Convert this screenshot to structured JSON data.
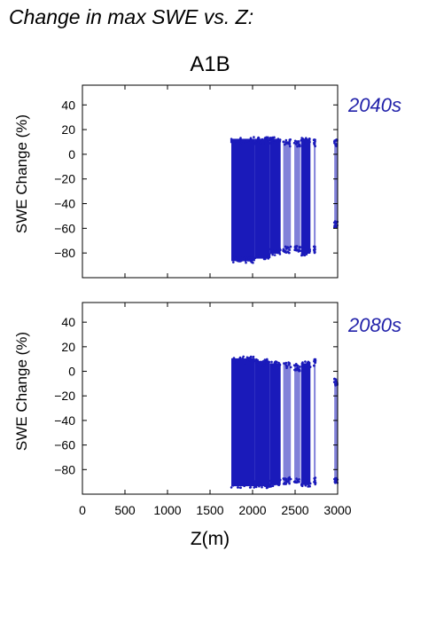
{
  "page_title": "Change in max SWE vs. Z:",
  "colors": {
    "points": "#1a1aba",
    "panel_label": "#2222aa",
    "axes": "#000000"
  },
  "chart_data": [
    {
      "type": "scatter",
      "scenario": "A1B",
      "panel_label": "2040s",
      "ylabel": "SWE Change (%)",
      "xlabel": "",
      "xlim": [
        0,
        3000
      ],
      "ylim": [
        -100,
        56
      ],
      "yticks": [
        -80,
        -60,
        -40,
        -20,
        0,
        20,
        40
      ],
      "ytick_labels": [
        "−80",
        "−60",
        "−40",
        "−20",
        "0",
        "20",
        "40"
      ],
      "xticks": [
        0,
        500,
        1000,
        1500,
        2000,
        2500,
        3000
      ],
      "grid": false,
      "point_groups": [
        {
          "x": [
            1750,
            2030
          ],
          "y": [
            -88,
            14
          ],
          "note": "dense main cluster"
        },
        {
          "x": [
            2030,
            2200
          ],
          "y": [
            -86,
            14
          ]
        },
        {
          "x": [
            2200,
            2330
          ],
          "y": [
            -82,
            14
          ]
        },
        {
          "x": [
            2360,
            2450
          ],
          "y": [
            -80,
            12
          ]
        },
        {
          "x": [
            2490,
            2560
          ],
          "y": [
            -80,
            12
          ]
        },
        {
          "x": [
            2570,
            2680
          ],
          "y": [
            -82,
            14
          ]
        },
        {
          "x": [
            2720,
            2740
          ],
          "y": [
            -80,
            12
          ]
        },
        {
          "x": [
            2960,
            3000
          ],
          "y": [
            -60,
            12
          ]
        }
      ]
    },
    {
      "type": "scatter",
      "scenario": "A1B",
      "panel_label": "2080s",
      "ylabel": "SWE Change (%)",
      "xlabel": "Z(m)",
      "xlim": [
        0,
        3000
      ],
      "ylim": [
        -100,
        56
      ],
      "yticks": [
        -80,
        -60,
        -40,
        -20,
        0,
        20,
        40
      ],
      "ytick_labels": [
        "−80",
        "−60",
        "−40",
        "−20",
        "0",
        "20",
        "40"
      ],
      "xticks": [
        0,
        500,
        1000,
        1500,
        2000,
        2500,
        3000
      ],
      "xtick_labels": [
        "0",
        "500",
        "1000",
        "1500",
        "2000",
        "2500",
        "3000"
      ],
      "grid": false,
      "point_groups": [
        {
          "x": [
            1750,
            2030
          ],
          "y": [
            -95,
            12
          ],
          "note": "dense main cluster"
        },
        {
          "x": [
            2030,
            2200
          ],
          "y": [
            -95,
            10
          ]
        },
        {
          "x": [
            2200,
            2330
          ],
          "y": [
            -94,
            8
          ]
        },
        {
          "x": [
            2360,
            2450
          ],
          "y": [
            -92,
            8
          ]
        },
        {
          "x": [
            2490,
            2560
          ],
          "y": [
            -92,
            6
          ]
        },
        {
          "x": [
            2570,
            2680
          ],
          "y": [
            -94,
            8
          ]
        },
        {
          "x": [
            2720,
            2740
          ],
          "y": [
            -92,
            10
          ]
        },
        {
          "x": [
            2960,
            3000
          ],
          "y": [
            -92,
            -6
          ]
        }
      ]
    }
  ]
}
